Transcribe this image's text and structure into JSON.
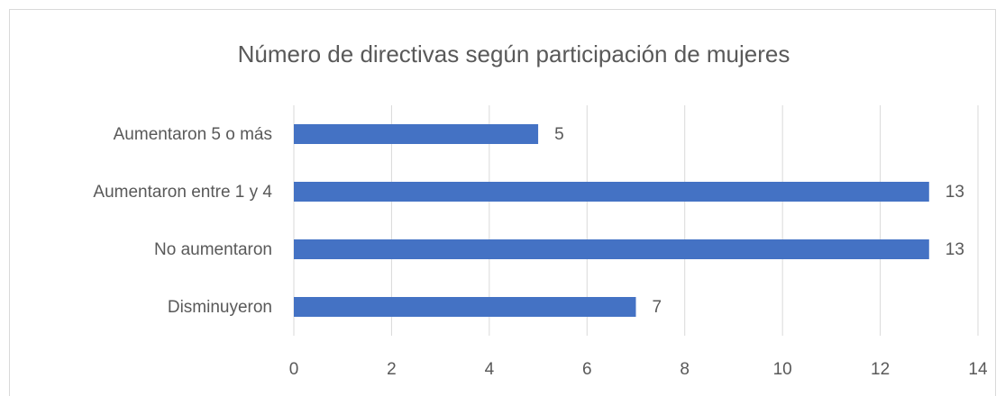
{
  "chart_data": {
    "type": "barh",
    "title": "Número de directivas según participación de mujeres",
    "categories": [
      "Aumentaron 5 o más",
      "Aumentaron entre 1 y 4",
      "No aumentaron",
      "Disminuyeron"
    ],
    "values": [
      5,
      13,
      13,
      7
    ],
    "color": "#4472c4",
    "xlim": [
      0,
      14
    ],
    "xticks": [
      0,
      2,
      4,
      6,
      8,
      10,
      12,
      14
    ],
    "grid": true
  }
}
